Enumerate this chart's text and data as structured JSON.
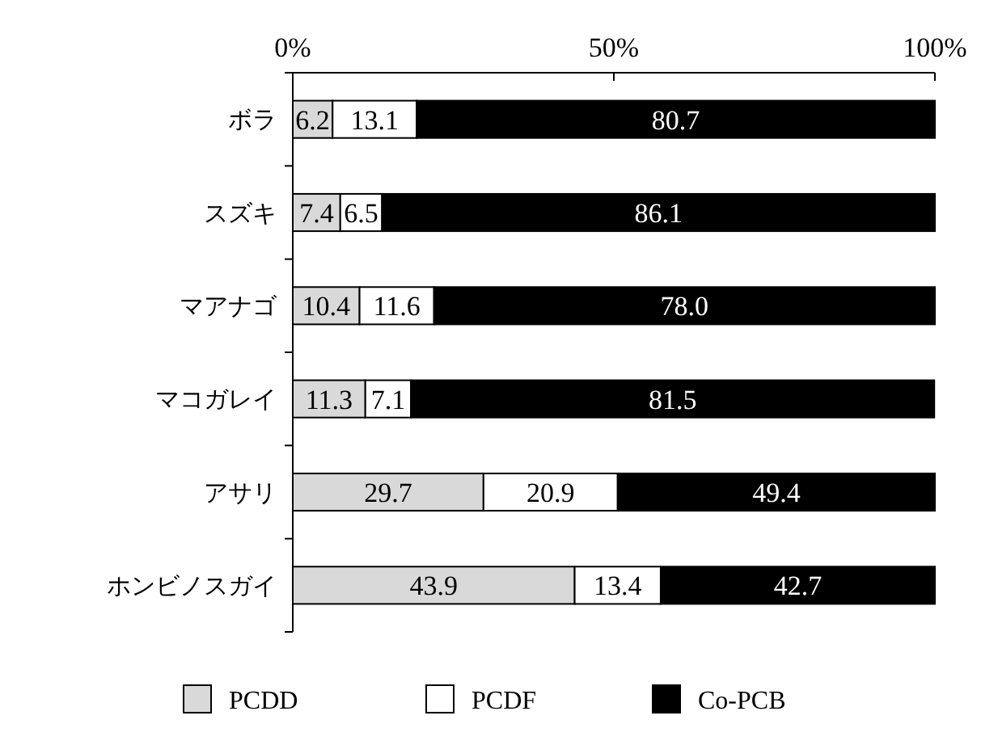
{
  "chart_data": {
    "type": "bar",
    "orientation": "horizontal",
    "stacked": true,
    "categories": [
      "ボラ",
      "スズキ",
      "マアナゴ",
      "マコガレイ",
      "アサリ",
      "ホンビノスガイ"
    ],
    "series": [
      {
        "name": "PCDD",
        "color": "#d9d9d9",
        "values": [
          6.2,
          7.4,
          10.4,
          11.3,
          29.7,
          43.9
        ],
        "value_labels": [
          "6.2",
          "7.4",
          "10.4",
          "11.3",
          "29.7",
          "43.9"
        ]
      },
      {
        "name": "PCDF",
        "color": "#ffffff",
        "values": [
          13.1,
          6.5,
          11.6,
          7.1,
          20.9,
          13.4
        ],
        "value_labels": [
          "13.1",
          "6.5",
          "11.6",
          "7.1",
          "20.9",
          "13.4"
        ]
      },
      {
        "name": "Co-PCB",
        "color": "#000000",
        "values": [
          80.7,
          86.1,
          78.0,
          81.5,
          49.4,
          42.7
        ],
        "value_labels": [
          "80.7",
          "86.1",
          "78.0",
          "81.5",
          "49.4",
          "42.7"
        ]
      }
    ],
    "xlim": [
      0,
      100
    ],
    "xticks": [
      {
        "value": 0,
        "label": "0%"
      },
      {
        "value": 50,
        "label": "50%"
      },
      {
        "value": 100,
        "label": "100%"
      }
    ],
    "legend": "bottom"
  }
}
